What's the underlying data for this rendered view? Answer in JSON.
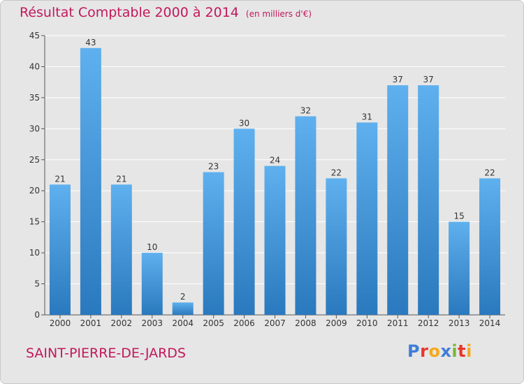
{
  "header": {
    "title": "Résultat Comptable 2000 à 2014",
    "unit": "(en milliers d'€)"
  },
  "footer": {
    "place": "SAINT-PIERRE-DE-JARDS",
    "logo_letters": [
      "P",
      "r",
      "o",
      "x",
      "i",
      "t",
      "i"
    ],
    "logo_colors": [
      "#3f7ed8",
      "#e8352b",
      "#f4a91c",
      "#3f7ed8",
      "#78b833",
      "#e8352b",
      "#f4a91c"
    ]
  },
  "colors": {
    "accent": "#c2185b",
    "bar_top": "#5fb0ee",
    "bar_bottom": "#2a79be"
  },
  "chart_data": {
    "type": "bar",
    "categories": [
      "2000",
      "2001",
      "2002",
      "2003",
      "2004",
      "2005",
      "2006",
      "2007",
      "2008",
      "2009",
      "2010",
      "2011",
      "2012",
      "2013",
      "2014"
    ],
    "values": [
      21,
      43,
      21,
      10,
      2,
      23,
      30,
      24,
      32,
      22,
      31,
      37,
      37,
      15,
      22
    ],
    "yticks": [
      0,
      5,
      10,
      15,
      20,
      25,
      30,
      35,
      40,
      45
    ],
    "ylim": [
      0,
      45
    ],
    "grid": true
  }
}
